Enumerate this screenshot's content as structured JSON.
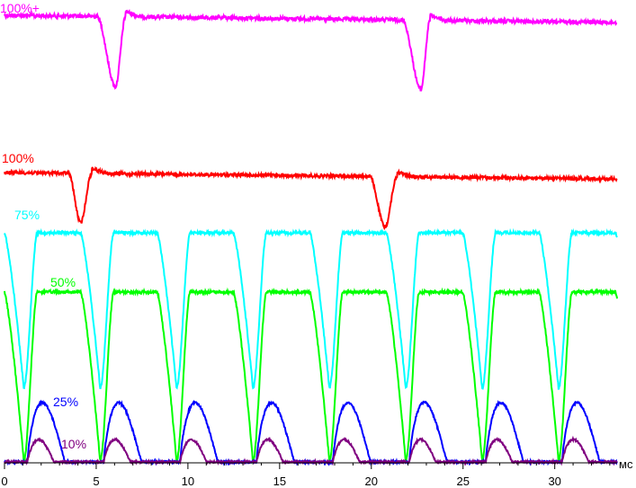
{
  "chart_data": {
    "type": "line",
    "xlabel": "мс",
    "xlim": [
      0,
      33.4
    ],
    "x_ticks": [
      0,
      5,
      10,
      15,
      20,
      25,
      30
    ],
    "grid": false,
    "series": [
      {
        "name": "100%+",
        "color": "#ff00ff",
        "baseline_y": 17,
        "noise": 2.2,
        "dips": [
          {
            "start": 5.05,
            "bottom": 6.05,
            "end": 6.6,
            "depth": 78
          },
          {
            "start": 21.7,
            "bottom": 22.7,
            "end": 23.2,
            "depth": 77
          }
        ],
        "drift": -8,
        "description_y_axis": "relative brightness, arbitrary units"
      },
      {
        "name": "100%",
        "color": "#ff0000",
        "baseline_y": 192,
        "noise": 1.8,
        "dips": [
          {
            "start": 3.5,
            "bottom": 4.15,
            "end": 4.75,
            "depth": 55
          },
          {
            "start": 19.9,
            "bottom": 20.75,
            "end": 21.4,
            "depth": 56
          }
        ],
        "drift": -7
      },
      {
        "name": "75%",
        "color": "#00ffff",
        "period": 4.165,
        "offset": 0.0,
        "high_y": 259,
        "low_y": 432,
        "noise": 1.6
      },
      {
        "name": "50%",
        "color": "#00ff00",
        "period": 4.165,
        "offset": 0.0,
        "high_y": 325,
        "low_y": 513,
        "noise": 1.6
      },
      {
        "name": "25%",
        "color": "#0000ff",
        "period": 4.165,
        "offset": 0.0,
        "base_y": 514,
        "peak_y": 448,
        "noise": 1.2
      },
      {
        "name": "10%",
        "color": "#800080",
        "period": 4.165,
        "offset": 0.0,
        "base_y": 514,
        "peak_y": 489,
        "noise": 1.0
      }
    ],
    "labels": [
      {
        "series": "100%+",
        "text": "100%+"
      },
      {
        "series": "100%",
        "text": "100%"
      },
      {
        "series": "75%",
        "text": "75%"
      },
      {
        "series": "50%",
        "text": "50%"
      },
      {
        "series": "25%",
        "text": "25%"
      },
      {
        "series": "10%",
        "text": "10%"
      }
    ]
  }
}
